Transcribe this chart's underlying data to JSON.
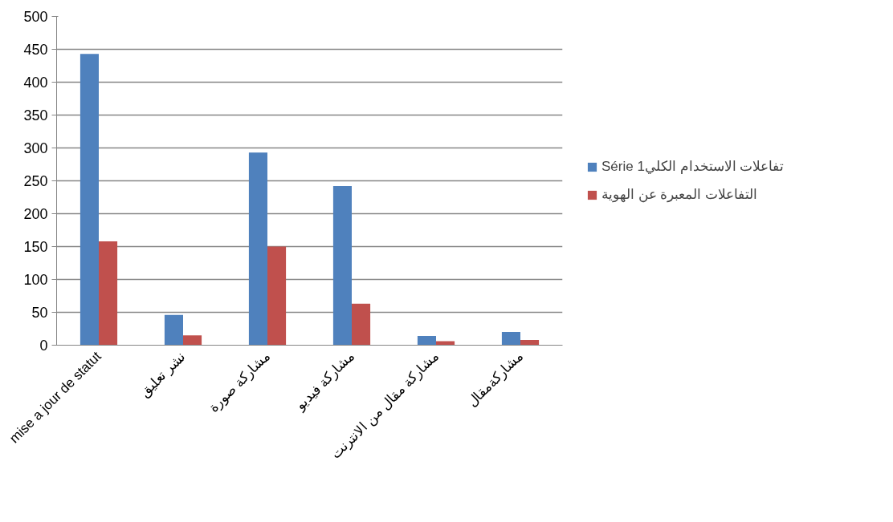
{
  "chart_data": {
    "type": "bar",
    "categories": [
      "mise a jour de statut",
      "نشر تعليق",
      "مشاركة صورة",
      "مشاركة فيديو",
      "مشاركة مقال من الانترنت",
      "مشاركةمقال"
    ],
    "series": [
      {
        "name": "Série 1تفاعلات الاستخدام الكلي",
        "color": "#4f81bd",
        "values": [
          443,
          46,
          293,
          242,
          14,
          20
        ]
      },
      {
        "name": "التفاعلات المعبرة عن الهوية",
        "color": "#c0504d",
        "values": [
          158,
          15,
          150,
          63,
          6,
          8
        ]
      }
    ],
    "ylim": [
      0,
      500
    ],
    "yticks": [
      0,
      50,
      100,
      150,
      200,
      250,
      300,
      350,
      400,
      450,
      500
    ],
    "grid": "y",
    "legend": "right"
  }
}
